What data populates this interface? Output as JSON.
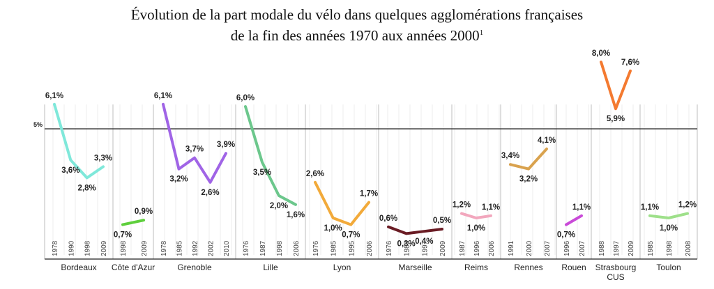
{
  "title": {
    "line1": "Évolution de la part modale du vélo dans quelques agglomérations françaises",
    "line2": "de la fin des années 1970 aux années 2000",
    "footnote_mark": "1"
  },
  "chart_data": {
    "type": "line",
    "title": "Évolution de la part modale du vélo dans quelques agglomérations françaises de la fin des années 1970 aux années 2000",
    "reference_line": {
      "value": 5,
      "label": "5%"
    },
    "ylim": [
      0,
      8.4
    ],
    "grid": "vertical",
    "series": [
      {
        "name": "Bordeaux",
        "color": "#7fe8da",
        "years": [
          "1978",
          "1990",
          "1998",
          "2009"
        ],
        "values": [
          6.1,
          3.6,
          2.8,
          3.3
        ],
        "labels": [
          "6,1%",
          "3,6%",
          "2,8%",
          "3,3%"
        ]
      },
      {
        "name": "Côte d'Azur",
        "color": "#5ecf3c",
        "years": [
          "1998",
          "2009"
        ],
        "values": [
          0.7,
          0.9
        ],
        "labels": [
          "0,7%",
          "0,9%"
        ]
      },
      {
        "name": "Grenoble",
        "color": "#a064e6",
        "years": [
          "1978",
          "1985",
          "1992",
          "2002",
          "2010"
        ],
        "values": [
          6.1,
          3.2,
          3.7,
          2.6,
          3.9
        ],
        "labels": [
          "6,1%",
          "3,2%",
          "3,7%",
          "2,6%",
          "3,9%"
        ]
      },
      {
        "name": "Lille",
        "color": "#6cc78c",
        "years": [
          "1976",
          "1987",
          "1998",
          "2006"
        ],
        "values": [
          6.0,
          3.5,
          2.0,
          1.6
        ],
        "labels": [
          "6,0%",
          "3,5%",
          "2,0%",
          "1,6%"
        ]
      },
      {
        "name": "Lyon",
        "color": "#f2aa3a",
        "years": [
          "1976",
          "1985",
          "1995",
          "2006"
        ],
        "values": [
          2.6,
          1.0,
          0.7,
          1.7
        ],
        "labels": [
          "2,6%",
          "1,0%",
          "0,7%",
          "1,7%"
        ]
      },
      {
        "name": "Marseille",
        "color": "#6a1c24",
        "years": [
          "1976",
          "1988",
          "1997",
          "2009"
        ],
        "values": [
          0.6,
          0.3,
          0.4,
          0.5
        ],
        "labels": [
          "0,6%",
          "0,3%",
          "0,4%",
          "0,5%"
        ]
      },
      {
        "name": "Reims",
        "color": "#f2a7bd",
        "years": [
          "1987",
          "1996",
          "2006"
        ],
        "values": [
          1.2,
          1.0,
          1.1
        ],
        "labels": [
          "1,2%",
          "1,0%",
          "1,1%"
        ]
      },
      {
        "name": "Rennes",
        "color": "#d9a24e",
        "years": [
          "1991",
          "2000",
          "2007"
        ],
        "values": [
          3.4,
          3.2,
          4.1
        ],
        "labels": [
          "3,4%",
          "3,2%",
          "4,1%"
        ]
      },
      {
        "name": "Rouen",
        "color": "#c94ad8",
        "years": [
          "1996",
          "2007"
        ],
        "values": [
          0.7,
          1.1
        ],
        "labels": [
          "0,7%",
          "1,1%"
        ]
      },
      {
        "name": "Strasbourg CUS",
        "color": "#f47a30",
        "years": [
          "1988",
          "1997",
          "2009"
        ],
        "values": [
          8.0,
          5.9,
          7.6
        ],
        "labels": [
          "8,0%",
          "5,9%",
          "7,6%"
        ]
      },
      {
        "name": "Toulon",
        "color": "#9ee08a",
        "years": [
          "1985",
          "1998",
          "2008"
        ],
        "values": [
          1.1,
          1.0,
          1.2
        ],
        "labels": [
          "1,1%",
          "1,0%",
          "1,2%"
        ]
      }
    ]
  }
}
